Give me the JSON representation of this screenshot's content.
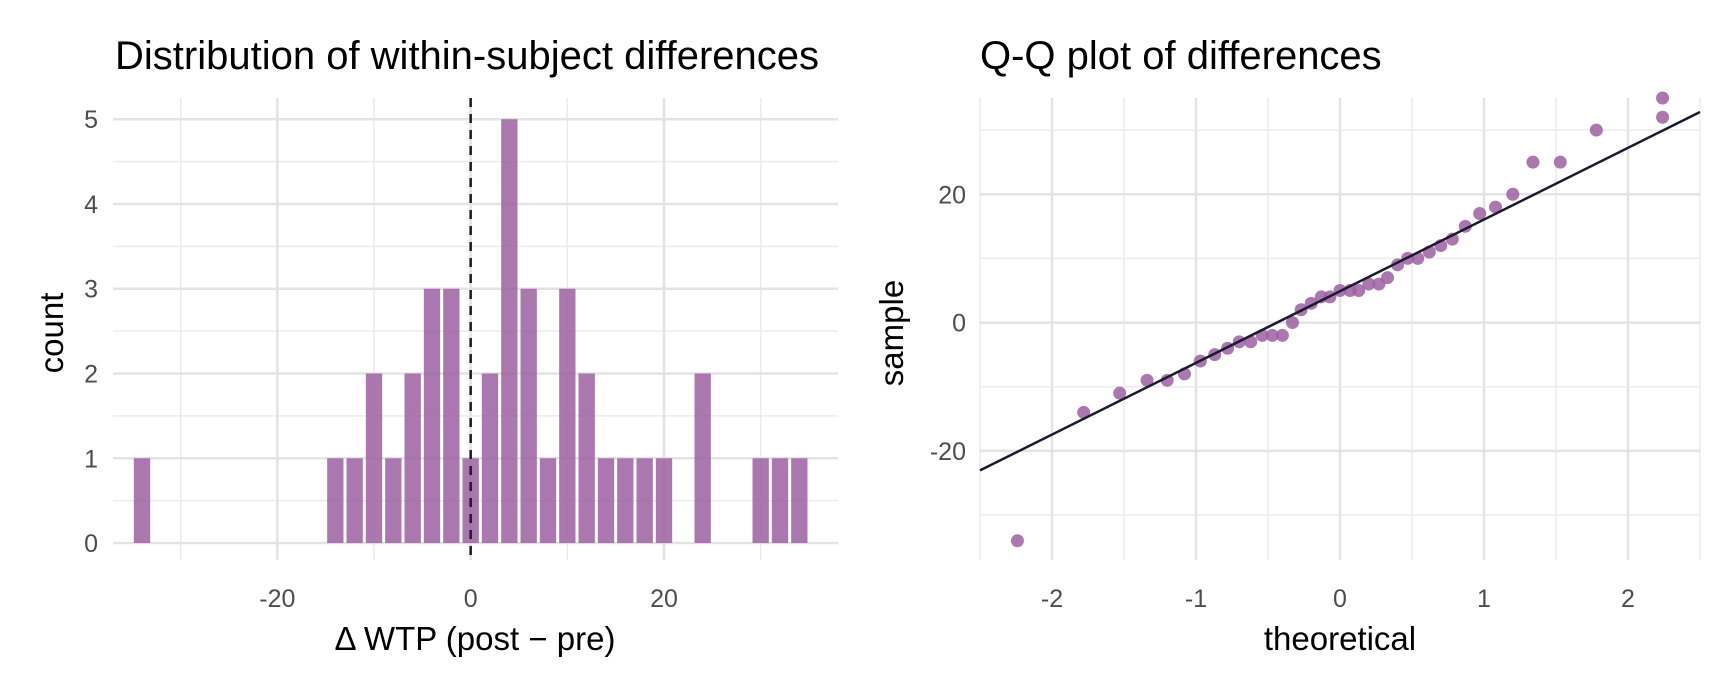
{
  "chart_data": [
    {
      "type": "bar",
      "title": "Distribution of within-subject differences",
      "xlabel": "Δ WTP (post − pre)",
      "ylabel": "count",
      "xlim": [
        -37,
        38
      ],
      "ylim": [
        -0.2,
        5.25
      ],
      "x_ticks": [
        -20,
        0,
        20
      ],
      "x_tick_labels": [
        "-20",
        "0",
        "20"
      ],
      "y_ticks": [
        0,
        1,
        2,
        3,
        4,
        5
      ],
      "y_tick_labels": [
        "0",
        "1",
        "2",
        "3",
        "4",
        "5"
      ],
      "bin_width": 2,
      "bin_centers": [
        -34,
        -32,
        -30,
        -28,
        -26,
        -24,
        -22,
        -20,
        -18,
        -16,
        -14,
        -12,
        -10,
        -8,
        -6,
        -4,
        -2,
        0,
        2,
        4,
        6,
        8,
        10,
        12,
        14,
        16,
        18,
        20,
        22,
        24,
        26,
        28,
        30,
        32,
        34
      ],
      "counts": [
        1,
        0,
        0,
        0,
        0,
        0,
        0,
        0,
        0,
        0,
        1,
        1,
        2,
        1,
        2,
        3,
        3,
        1,
        2,
        5,
        3,
        1,
        3,
        2,
        1,
        1,
        1,
        1,
        0,
        2,
        0,
        0,
        1,
        1,
        1
      ],
      "reference_line_x": 0,
      "bar_color": "#9b5fa0",
      "grid": true
    },
    {
      "type": "scatter",
      "title": "Q-Q plot of differences",
      "xlabel": "theoretical",
      "ylabel": "sample",
      "xlim": [
        -2.5,
        2.5
      ],
      "ylim": [
        -37,
        35
      ],
      "x_ticks": [
        -2,
        -1,
        0,
        1,
        2
      ],
      "x_tick_labels": [
        "-2",
        "-1",
        "0",
        "1",
        "2"
      ],
      "y_ticks": [
        -20,
        0,
        20
      ],
      "y_tick_labels": [
        "-20",
        "0",
        "20"
      ],
      "x": [
        -2.24,
        -1.78,
        -1.53,
        -1.34,
        -1.2,
        -1.08,
        -0.97,
        -0.87,
        -0.78,
        -0.7,
        -0.62,
        -0.54,
        -0.47,
        -0.4,
        -0.33,
        -0.27,
        -0.2,
        -0.13,
        -0.07,
        0,
        0.07,
        0.13,
        0.2,
        0.27,
        0.33,
        0.4,
        0.47,
        0.54,
        0.62,
        0.7,
        0.78,
        0.87,
        0.97,
        1.08,
        1.2,
        1.34,
        1.53,
        1.78,
        2.24
      ],
      "y": [
        -34,
        -14,
        -11,
        -9,
        -9,
        -8,
        -6,
        -5,
        -4,
        -3,
        -3,
        -2,
        -2,
        -2,
        0,
        2,
        3,
        4,
        4,
        5,
        5,
        5,
        6,
        6,
        7,
        9,
        10,
        10,
        11,
        12,
        13,
        15,
        17,
        18,
        20,
        25,
        25,
        30,
        32
      ],
      "extra_point": {
        "x": 2.24,
        "y": 35
      },
      "reference_line": {
        "intercept": 4.89,
        "slope": 11.17
      },
      "point_color": "#9b5fa0",
      "line_color": "#1a1a2e",
      "grid": true
    }
  ]
}
